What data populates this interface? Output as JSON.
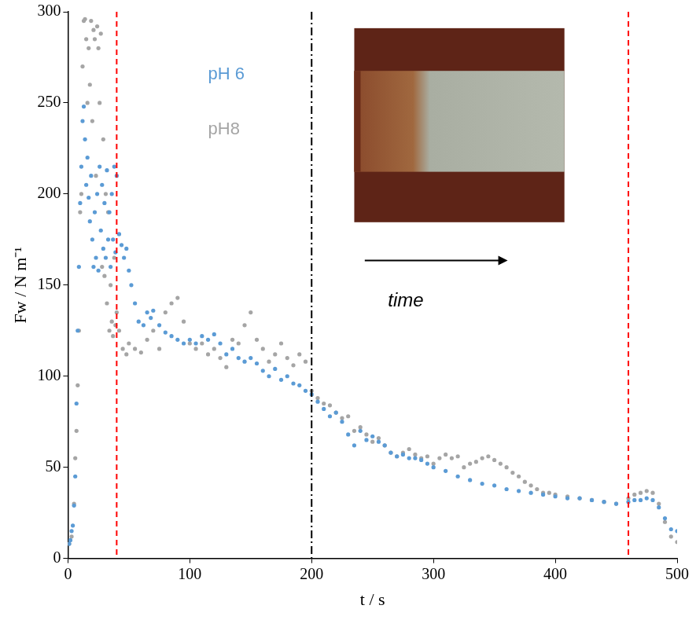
{
  "chart_data": {
    "type": "scatter",
    "x_label": "t / s",
    "y_label": "Fw / N m⁻¹",
    "xlim": [
      0,
      500
    ],
    "xticks": [
      0,
      100,
      200,
      300,
      400,
      500
    ],
    "ylim": [
      0,
      300
    ],
    "yticks": [
      0,
      50,
      100,
      150,
      200,
      250,
      300
    ],
    "grid": false,
    "legend": "upper left",
    "marker": "circle",
    "annotations": [
      {
        "text": "time"
      }
    ],
    "vertical_lines": [
      {
        "x": 40,
        "color": "#ff0000",
        "line_style": "dashed"
      },
      {
        "x": 200,
        "color": "#000000",
        "line_style": "dashdot"
      },
      {
        "x": 460,
        "color": "#ff0000",
        "line_style": "dashed"
      }
    ],
    "series": [
      {
        "name": "pH 6",
        "color": "#5b9bd5",
        "x": [
          1,
          2,
          3,
          4,
          5,
          6,
          7,
          8,
          9,
          10,
          11,
          12,
          13,
          14,
          15,
          16,
          17,
          18,
          19,
          20,
          21,
          22,
          23,
          24,
          25,
          26,
          27,
          28,
          29,
          30,
          31,
          32,
          33,
          34,
          35,
          36,
          37,
          38,
          39,
          40,
          42,
          44,
          46,
          48,
          50,
          52,
          55,
          58,
          62,
          65,
          68,
          70,
          75,
          80,
          85,
          90,
          95,
          100,
          105,
          110,
          115,
          120,
          125,
          130,
          135,
          140,
          145,
          150,
          155,
          160,
          165,
          170,
          175,
          180,
          185,
          190,
          195,
          200,
          205,
          210,
          215,
          220,
          225,
          230,
          235,
          240,
          245,
          250,
          255,
          260,
          265,
          270,
          275,
          280,
          285,
          290,
          295,
          300,
          310,
          320,
          330,
          340,
          350,
          360,
          370,
          380,
          390,
          400,
          410,
          420,
          430,
          440,
          450,
          460,
          465,
          470,
          475,
          480,
          485,
          490,
          495,
          500
        ],
        "values": [
          8,
          10,
          15,
          18,
          29,
          45,
          85,
          125,
          160,
          195,
          215,
          240,
          248,
          230,
          205,
          220,
          198,
          185,
          210,
          175,
          160,
          190,
          165,
          200,
          158,
          215,
          180,
          205,
          170,
          195,
          165,
          213,
          175,
          190,
          160,
          200,
          175,
          215,
          168,
          210,
          178,
          172,
          165,
          170,
          158,
          150,
          140,
          130,
          128,
          135,
          132,
          136,
          128,
          124,
          122,
          120,
          118,
          120,
          118,
          122,
          120,
          123,
          118,
          112,
          115,
          110,
          108,
          110,
          107,
          103,
          100,
          104,
          98,
          100,
          96,
          95,
          92,
          90,
          86,
          82,
          78,
          80,
          75,
          68,
          62,
          70,
          65,
          67,
          64,
          62,
          58,
          56,
          57,
          55,
          55,
          54,
          52,
          50,
          48,
          45,
          43,
          41,
          40,
          38,
          37,
          36,
          35,
          34,
          33,
          33,
          32,
          31,
          30,
          31,
          32,
          32,
          33,
          32,
          28,
          22,
          16,
          15
        ]
      },
      {
        "name": "pH8",
        "color": "#a5a5a5",
        "x": [
          1,
          3,
          5,
          6,
          7,
          8,
          9,
          10,
          11,
          12,
          13,
          14,
          15,
          16,
          17,
          18,
          19,
          20,
          21,
          22,
          23,
          24,
          25,
          26,
          27,
          28,
          29,
          30,
          31,
          32,
          33,
          34,
          35,
          36,
          37,
          38,
          39,
          40,
          42,
          45,
          48,
          50,
          55,
          60,
          65,
          70,
          75,
          80,
          85,
          90,
          95,
          100,
          105,
          110,
          115,
          120,
          125,
          130,
          135,
          140,
          145,
          150,
          155,
          160,
          165,
          170,
          175,
          180,
          185,
          190,
          195,
          200,
          205,
          210,
          215,
          220,
          225,
          230,
          235,
          240,
          245,
          250,
          255,
          260,
          265,
          270,
          275,
          280,
          285,
          290,
          295,
          300,
          305,
          310,
          315,
          320,
          325,
          330,
          335,
          340,
          345,
          350,
          355,
          360,
          365,
          370,
          375,
          380,
          385,
          390,
          395,
          400,
          410,
          420,
          430,
          440,
          450,
          460,
          465,
          470,
          475,
          480,
          485,
          490,
          495,
          500
        ],
        "values": [
          8,
          12,
          30,
          55,
          70,
          95,
          125,
          190,
          200,
          270,
          295,
          296,
          285,
          250,
          280,
          260,
          295,
          240,
          290,
          285,
          210,
          292,
          280,
          250,
          288,
          160,
          230,
          155,
          200,
          140,
          190,
          125,
          150,
          130,
          122,
          165,
          128,
          135,
          125,
          115,
          112,
          118,
          115,
          113,
          120,
          125,
          115,
          135,
          140,
          143,
          130,
          118,
          115,
          118,
          112,
          115,
          110,
          105,
          120,
          118,
          128,
          135,
          120,
          115,
          108,
          112,
          118,
          110,
          106,
          112,
          108,
          92,
          88,
          85,
          84,
          80,
          77,
          78,
          70,
          72,
          68,
          64,
          66,
          62,
          58,
          56,
          58,
          60,
          57,
          55,
          56,
          52,
          55,
          57,
          55,
          56,
          50,
          52,
          53,
          55,
          56,
          54,
          52,
          50,
          47,
          45,
          42,
          40,
          38,
          36,
          36,
          35,
          34,
          33,
          32,
          31,
          30,
          33,
          35,
          36,
          37,
          36,
          30,
          20,
          12,
          9
        ]
      }
    ]
  }
}
